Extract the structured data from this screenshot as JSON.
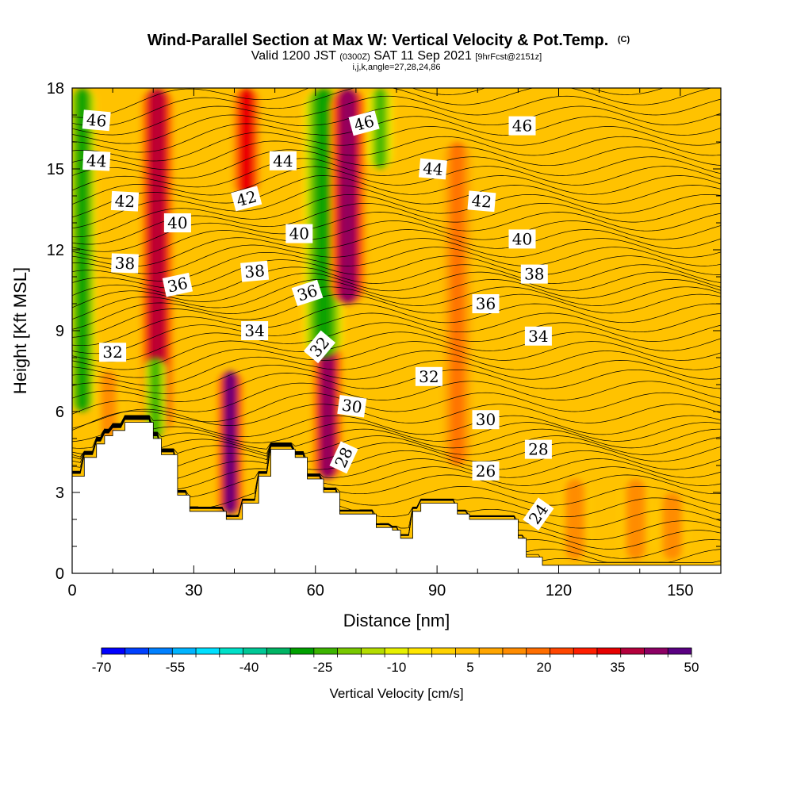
{
  "chart_data": {
    "type": "heatmap",
    "title": "Wind-Parallel Section at Max W: Vertical Velocity & Pot.Temp.",
    "title_badge": "(C)",
    "subtitle_parts": [
      "Valid 1200 JST",
      "(0300Z)",
      "SAT 11 Sep 2021",
      "[9hrFcst@2151z]"
    ],
    "subtitle2": "i,j,k,angle=27,28,24,86",
    "xlabel": "Distance [nm]",
    "ylabel": "Height [Kft MSL]",
    "xlim": [
      0,
      160
    ],
    "ylim": [
      0,
      18
    ],
    "x_ticks": [
      0,
      30,
      60,
      90,
      120,
      150
    ],
    "y_ticks": [
      0,
      3,
      6,
      9,
      12,
      15,
      18
    ],
    "colorbar": {
      "label": "Vertical Velocity [cm/s]",
      "tick_labels": [
        -70,
        -55,
        -40,
        -25,
        -10,
        5,
        20,
        35,
        50
      ],
      "min": -70,
      "max": 50,
      "colors": [
        "#0000ff",
        "#0040ff",
        "#0080ff",
        "#00b4ff",
        "#00e0ff",
        "#00e0c8",
        "#00c896",
        "#00b464",
        "#00a000",
        "#3cb400",
        "#78c800",
        "#b4dc00",
        "#e6f000",
        "#ffe600",
        "#ffd200",
        "#ffbe00",
        "#ffa500",
        "#ff8c00",
        "#ff6e00",
        "#ff4600",
        "#ff1e00",
        "#e60000",
        "#b4003c",
        "#8c0064",
        "#5a0082"
      ]
    },
    "terrain": [
      [
        0,
        3.6
      ],
      [
        3,
        3.6
      ],
      [
        3,
        4.3
      ],
      [
        6,
        4.3
      ],
      [
        6,
        4.8
      ],
      [
        8,
        4.8
      ],
      [
        8,
        5.1
      ],
      [
        10,
        5.1
      ],
      [
        10,
        5.3
      ],
      [
        13,
        5.3
      ],
      [
        13,
        5.6
      ],
      [
        20,
        5.6
      ],
      [
        20,
        5.0
      ],
      [
        22,
        5.0
      ],
      [
        22,
        4.4
      ],
      [
        26,
        4.4
      ],
      [
        26,
        2.9
      ],
      [
        29,
        2.9
      ],
      [
        29,
        2.3
      ],
      [
        38,
        2.3
      ],
      [
        38,
        2.0
      ],
      [
        42,
        2.0
      ],
      [
        42,
        2.6
      ],
      [
        46,
        2.6
      ],
      [
        46,
        3.6
      ],
      [
        49,
        3.6
      ],
      [
        49,
        4.6
      ],
      [
        55,
        4.6
      ],
      [
        55,
        4.3
      ],
      [
        58,
        4.3
      ],
      [
        58,
        3.5
      ],
      [
        62,
        3.5
      ],
      [
        62,
        3.0
      ],
      [
        66,
        3.0
      ],
      [
        66,
        2.2
      ],
      [
        75,
        2.2
      ],
      [
        75,
        1.7
      ],
      [
        79,
        1.7
      ],
      [
        79,
        1.6
      ],
      [
        81,
        1.6
      ],
      [
        81,
        1.3
      ],
      [
        84,
        1.3
      ],
      [
        84,
        2.3
      ],
      [
        86,
        2.3
      ],
      [
        86,
        2.6
      ],
      [
        95,
        2.6
      ],
      [
        95,
        2.2
      ],
      [
        98,
        2.2
      ],
      [
        98,
        2.0
      ],
      [
        110,
        2.0
      ],
      [
        110,
        1.3
      ],
      [
        112,
        1.3
      ],
      [
        112,
        0.6
      ],
      [
        116,
        0.6
      ],
      [
        116,
        0.3
      ],
      [
        160,
        0.3
      ]
    ],
    "theta_isentropes": [
      {
        "value": 24,
        "label": "24"
      },
      {
        "value": 26,
        "label": "26"
      },
      {
        "value": 28,
        "label": "28"
      },
      {
        "value": 30,
        "label": "30"
      },
      {
        "value": 32,
        "label": "32"
      },
      {
        "value": 34,
        "label": "34"
      },
      {
        "value": 36,
        "label": "36"
      },
      {
        "value": 38,
        "label": "38"
      },
      {
        "value": 40,
        "label": "40"
      },
      {
        "value": 42,
        "label": "42"
      },
      {
        "value": 44,
        "label": "44"
      },
      {
        "value": 46,
        "label": "46"
      }
    ],
    "contour_labels": [
      {
        "text": "46",
        "x": 6,
        "y": 16.8,
        "angle": 5
      },
      {
        "text": "44",
        "x": 6,
        "y": 15.3,
        "angle": 3
      },
      {
        "text": "42",
        "x": 13,
        "y": 13.8,
        "angle": 3
      },
      {
        "text": "40",
        "x": 26,
        "y": 13.0,
        "angle": 0
      },
      {
        "text": "38",
        "x": 13,
        "y": 11.5,
        "angle": 2
      },
      {
        "text": "36",
        "x": 26,
        "y": 10.7,
        "angle": -12
      },
      {
        "text": "32",
        "x": 10,
        "y": 8.2,
        "angle": 0
      },
      {
        "text": "46",
        "x": 72,
        "y": 16.7,
        "angle": -15
      },
      {
        "text": "44",
        "x": 52,
        "y": 15.3,
        "angle": 0
      },
      {
        "text": "42",
        "x": 43,
        "y": 13.9,
        "angle": -15
      },
      {
        "text": "40",
        "x": 56,
        "y": 12.6,
        "angle": 0
      },
      {
        "text": "38",
        "x": 45,
        "y": 11.2,
        "angle": -5
      },
      {
        "text": "36",
        "x": 58,
        "y": 10.4,
        "angle": -18
      },
      {
        "text": "34",
        "x": 45,
        "y": 9.0,
        "angle": 0
      },
      {
        "text": "32",
        "x": 61,
        "y": 8.4,
        "angle": -50
      },
      {
        "text": "30",
        "x": 69,
        "y": 6.2,
        "angle": 8
      },
      {
        "text": "28",
        "x": 67,
        "y": 4.3,
        "angle": -65
      },
      {
        "text": "46",
        "x": 111,
        "y": 16.6,
        "angle": 0
      },
      {
        "text": "44",
        "x": 89,
        "y": 15.0,
        "angle": 5
      },
      {
        "text": "42",
        "x": 101,
        "y": 13.8,
        "angle": 5
      },
      {
        "text": "40",
        "x": 111,
        "y": 12.4,
        "angle": 0
      },
      {
        "text": "38",
        "x": 114,
        "y": 11.1,
        "angle": 0
      },
      {
        "text": "36",
        "x": 102,
        "y": 10.0,
        "angle": 0
      },
      {
        "text": "34",
        "x": 115,
        "y": 8.8,
        "angle": 0
      },
      {
        "text": "32",
        "x": 88,
        "y": 7.3,
        "angle": 0
      },
      {
        "text": "30",
        "x": 102,
        "y": 5.7,
        "angle": 0
      },
      {
        "text": "28",
        "x": 115,
        "y": 4.6,
        "angle": 0
      },
      {
        "text": "26",
        "x": 102,
        "y": 3.8,
        "angle": 0
      },
      {
        "text": "24",
        "x": 115,
        "y": 2.2,
        "angle": -55
      }
    ],
    "velocity_features": [
      {
        "x": 2.5,
        "y0": 6.0,
        "y1": 18,
        "w": 2.2,
        "value": -30
      },
      {
        "x": 21,
        "y0": 5.2,
        "y1": 18,
        "w": 3.0,
        "value": 40
      },
      {
        "x": 20.5,
        "y0": 5.0,
        "y1": 8.0,
        "w": 2.0,
        "value": -25
      },
      {
        "x": 39,
        "y0": 2.2,
        "y1": 7.5,
        "w": 2.2,
        "value": 50
      },
      {
        "x": 43,
        "y0": 14.0,
        "y1": 18,
        "w": 2.5,
        "value": 35
      },
      {
        "x": 63,
        "y0": 3.5,
        "y1": 8.5,
        "w": 2.5,
        "value": 45
      },
      {
        "x": 62,
        "y0": 8.0,
        "y1": 18,
        "w": 3.2,
        "value": -30
      },
      {
        "x": 68,
        "y0": 10.0,
        "y1": 18,
        "w": 3.0,
        "value": 45
      },
      {
        "x": 76,
        "y0": 15.0,
        "y1": 18,
        "w": 2.0,
        "value": -25
      },
      {
        "x": 95,
        "y0": 4.0,
        "y1": 16.0,
        "w": 2.5,
        "value": 20
      },
      {
        "x": 9,
        "y0": 5.0,
        "y1": 7.5,
        "w": 2.0,
        "value": 15
      },
      {
        "x": 124,
        "y0": 0.5,
        "y1": 3.5,
        "w": 2.5,
        "value": 15
      },
      {
        "x": 139,
        "y0": 0.5,
        "y1": 3.5,
        "w": 2.5,
        "value": 15
      },
      {
        "x": 148,
        "y0": 0.5,
        "y1": 3.0,
        "w": 2.5,
        "value": 15
      }
    ]
  }
}
